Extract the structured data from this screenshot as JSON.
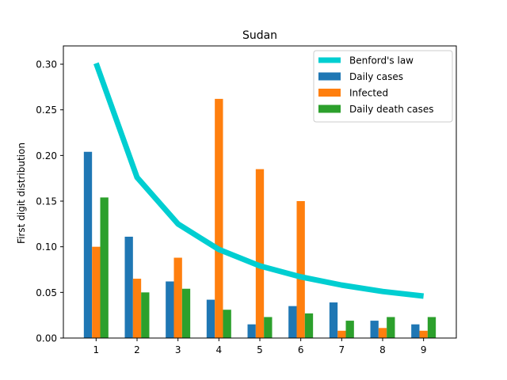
{
  "chart_data": {
    "type": "bar",
    "title": "Sudan",
    "xlabel": "",
    "ylabel": "First digit distribution",
    "categories": [
      "1",
      "2",
      "3",
      "4",
      "5",
      "6",
      "7",
      "8",
      "9"
    ],
    "ylim": [
      0,
      0.32
    ],
    "yticks": [
      "0.00",
      "0.05",
      "0.10",
      "0.15",
      "0.20",
      "0.25",
      "0.30"
    ],
    "grid": false,
    "legend_position": "top-right",
    "series": [
      {
        "name": "Daily cases",
        "kind": "bar",
        "color": "#1f77b4",
        "values": [
          0.204,
          0.111,
          0.062,
          0.042,
          0.015,
          0.035,
          0.039,
          0.019,
          0.015
        ]
      },
      {
        "name": "Infected",
        "kind": "bar",
        "color": "#ff7f0e",
        "values": [
          0.1,
          0.065,
          0.088,
          0.262,
          0.185,
          0.15,
          0.008,
          0.011,
          0.008
        ]
      },
      {
        "name": "Daily death cases",
        "kind": "bar",
        "color": "#2ca02c",
        "values": [
          0.154,
          0.05,
          0.054,
          0.031,
          0.023,
          0.027,
          0.019,
          0.023,
          0.023
        ]
      }
    ],
    "benford": {
      "name": "Benford's law",
      "color": "#00ced1",
      "values": [
        0.301,
        0.176,
        0.125,
        0.097,
        0.079,
        0.067,
        0.058,
        0.051,
        0.046
      ]
    }
  }
}
